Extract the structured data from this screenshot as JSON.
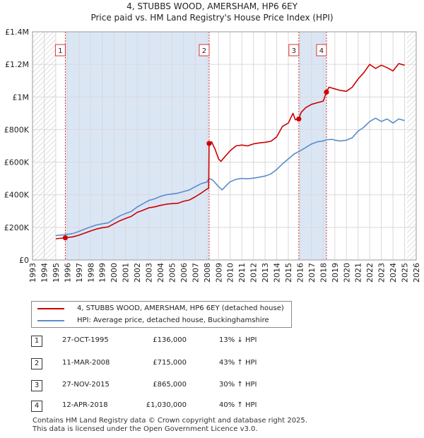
{
  "title_line1": "4, STUBBS WOOD, AMERSHAM, HP6 6EY",
  "title_line2": "Price paid vs. HM Land Registry's House Price Index (HPI)",
  "legend": {
    "property": "4, STUBBS WOOD, AMERSHAM, HP6 6EY (detached house)",
    "hpi": "HPI: Average price, detached house, Buckinghamshire"
  },
  "colors": {
    "property": "#cc0000",
    "hpi": "#5b8ccc",
    "shade": "#dbe6f5",
    "grid": "#d9d9d9"
  },
  "sales": [
    {
      "num": "1",
      "date": "27-OCT-1995",
      "price": "£136,000",
      "hpi": "13% ↓ HPI"
    },
    {
      "num": "2",
      "date": "11-MAR-2008",
      "price": "£715,000",
      "hpi": "43% ↑ HPI"
    },
    {
      "num": "3",
      "date": "27-NOV-2015",
      "price": "£865,000",
      "hpi": "30% ↑ HPI"
    },
    {
      "num": "4",
      "date": "12-APR-2018",
      "price": "£1,030,000",
      "hpi": "40% ↑ HPI"
    }
  ],
  "footer_line1": "Contains HM Land Registry data © Crown copyright and database right 2025.",
  "footer_line2": "This data is licensed under the Open Government Licence v3.0.",
  "chart_data": {
    "type": "line",
    "title": "4, STUBBS WOOD, AMERSHAM, HP6 6EY",
    "subtitle": "Price paid vs. HM Land Registry's House Price Index (HPI)",
    "xlim": [
      1993,
      2026
    ],
    "ylim": [
      0,
      1400000
    ],
    "x_ticks": [
      1993,
      1994,
      1995,
      1996,
      1997,
      1998,
      1999,
      2000,
      2001,
      2002,
      2003,
      2004,
      2005,
      2006,
      2007,
      2008,
      2009,
      2010,
      2011,
      2012,
      2013,
      2014,
      2015,
      2016,
      2017,
      2018,
      2019,
      2020,
      2021,
      2022,
      2023,
      2024,
      2025,
      2026
    ],
    "y_ticks": [
      {
        "value": 0,
        "label": "£0"
      },
      {
        "value": 200000,
        "label": "£200K"
      },
      {
        "value": 400000,
        "label": "£400K"
      },
      {
        "value": 600000,
        "label": "£600K"
      },
      {
        "value": 800000,
        "label": "£800K"
      },
      {
        "value": 1000000,
        "label": "£1M"
      },
      {
        "value": 1200000,
        "label": "£1.2M"
      },
      {
        "value": 1400000,
        "label": "£1.4M"
      }
    ],
    "hatch_before": 1995.0,
    "hatch_after": 2025.2,
    "shaded_ranges": [
      [
        1995.82,
        2008.19
      ],
      [
        2015.9,
        2018.28
      ]
    ],
    "sale_markers": [
      {
        "label": "1",
        "x": 1995.82,
        "y": 136000
      },
      {
        "label": "2",
        "x": 2008.19,
        "y": 715000
      },
      {
        "label": "3",
        "x": 2015.9,
        "y": 865000
      },
      {
        "label": "4",
        "x": 2018.28,
        "y": 1030000
      }
    ],
    "series": [
      {
        "name": "4, STUBBS WOOD, AMERSHAM, HP6 6EY (detached house)",
        "color": "#cc0000",
        "points": [
          [
            1995.0,
            130000
          ],
          [
            1995.82,
            136000
          ],
          [
            1996.5,
            142000
          ],
          [
            1997,
            152000
          ],
          [
            1997.5,
            165000
          ],
          [
            1998,
            178000
          ],
          [
            1998.5,
            190000
          ],
          [
            1999,
            198000
          ],
          [
            1999.5,
            203000
          ],
          [
            2000,
            222000
          ],
          [
            2000.5,
            240000
          ],
          [
            2001,
            255000
          ],
          [
            2001.5,
            268000
          ],
          [
            2002,
            292000
          ],
          [
            2002.5,
            305000
          ],
          [
            2003,
            320000
          ],
          [
            2003.5,
            326000
          ],
          [
            2004,
            335000
          ],
          [
            2004.5,
            342000
          ],
          [
            2005,
            346000
          ],
          [
            2005.5,
            348000
          ],
          [
            2006,
            360000
          ],
          [
            2006.5,
            368000
          ],
          [
            2007,
            388000
          ],
          [
            2007.5,
            410000
          ],
          [
            2008.0,
            435000
          ],
          [
            2008.15,
            440000
          ],
          [
            2008.19,
            715000
          ],
          [
            2008.4,
            725000
          ],
          [
            2008.7,
            680000
          ],
          [
            2009.0,
            620000
          ],
          [
            2009.2,
            605000
          ],
          [
            2009.5,
            630000
          ],
          [
            2010,
            670000
          ],
          [
            2010.5,
            700000
          ],
          [
            2011,
            705000
          ],
          [
            2011.5,
            700000
          ],
          [
            2012,
            712000
          ],
          [
            2012.5,
            718000
          ],
          [
            2013,
            722000
          ],
          [
            2013.5,
            728000
          ],
          [
            2014,
            755000
          ],
          [
            2014.5,
            820000
          ],
          [
            2015,
            840000
          ],
          [
            2015.4,
            900000
          ],
          [
            2015.6,
            860000
          ],
          [
            2015.9,
            865000
          ],
          [
            2016.1,
            905000
          ],
          [
            2016.5,
            935000
          ],
          [
            2017,
            955000
          ],
          [
            2017.5,
            965000
          ],
          [
            2018.0,
            975000
          ],
          [
            2018.28,
            1030000
          ],
          [
            2018.5,
            1060000
          ],
          [
            2019,
            1050000
          ],
          [
            2019.5,
            1040000
          ],
          [
            2020,
            1035000
          ],
          [
            2020.5,
            1060000
          ],
          [
            2021,
            1110000
          ],
          [
            2021.5,
            1150000
          ],
          [
            2022,
            1200000
          ],
          [
            2022.5,
            1175000
          ],
          [
            2023,
            1195000
          ],
          [
            2023.5,
            1180000
          ],
          [
            2024,
            1160000
          ],
          [
            2024.5,
            1205000
          ],
          [
            2025,
            1195000
          ]
        ]
      },
      {
        "name": "HPI: Average price, detached house, Buckinghamshire",
        "color": "#5b8ccc",
        "points": [
          [
            1995.0,
            150000
          ],
          [
            1995.82,
            155000
          ],
          [
            1996.5,
            163000
          ],
          [
            1997,
            175000
          ],
          [
            1997.5,
            190000
          ],
          [
            1998,
            203000
          ],
          [
            1998.5,
            215000
          ],
          [
            1999,
            222000
          ],
          [
            1999.5,
            228000
          ],
          [
            2000,
            250000
          ],
          [
            2000.5,
            270000
          ],
          [
            2001,
            285000
          ],
          [
            2001.5,
            298000
          ],
          [
            2002,
            325000
          ],
          [
            2002.5,
            345000
          ],
          [
            2003,
            365000
          ],
          [
            2003.5,
            375000
          ],
          [
            2004,
            390000
          ],
          [
            2004.5,
            400000
          ],
          [
            2005,
            405000
          ],
          [
            2005.5,
            410000
          ],
          [
            2006,
            420000
          ],
          [
            2006.5,
            430000
          ],
          [
            2007,
            450000
          ],
          [
            2007.5,
            468000
          ],
          [
            2008.0,
            478000
          ],
          [
            2008.19,
            500000
          ],
          [
            2008.5,
            490000
          ],
          [
            2009.0,
            450000
          ],
          [
            2009.3,
            430000
          ],
          [
            2009.7,
            460000
          ],
          [
            2010,
            480000
          ],
          [
            2010.5,
            495000
          ],
          [
            2011,
            500000
          ],
          [
            2011.5,
            498000
          ],
          [
            2012,
            502000
          ],
          [
            2012.5,
            508000
          ],
          [
            2013,
            515000
          ],
          [
            2013.5,
            528000
          ],
          [
            2014,
            555000
          ],
          [
            2014.5,
            590000
          ],
          [
            2015,
            620000
          ],
          [
            2015.5,
            650000
          ],
          [
            2015.9,
            665000
          ],
          [
            2016.5,
            690000
          ],
          [
            2017,
            712000
          ],
          [
            2017.5,
            725000
          ],
          [
            2018,
            730000
          ],
          [
            2018.28,
            738000
          ],
          [
            2018.8,
            740000
          ],
          [
            2019,
            735000
          ],
          [
            2019.5,
            730000
          ],
          [
            2020,
            735000
          ],
          [
            2020.5,
            750000
          ],
          [
            2021,
            790000
          ],
          [
            2021.5,
            815000
          ],
          [
            2022,
            850000
          ],
          [
            2022.5,
            870000
          ],
          [
            2023,
            850000
          ],
          [
            2023.5,
            865000
          ],
          [
            2024,
            840000
          ],
          [
            2024.5,
            865000
          ],
          [
            2025,
            855000
          ]
        ]
      }
    ]
  }
}
